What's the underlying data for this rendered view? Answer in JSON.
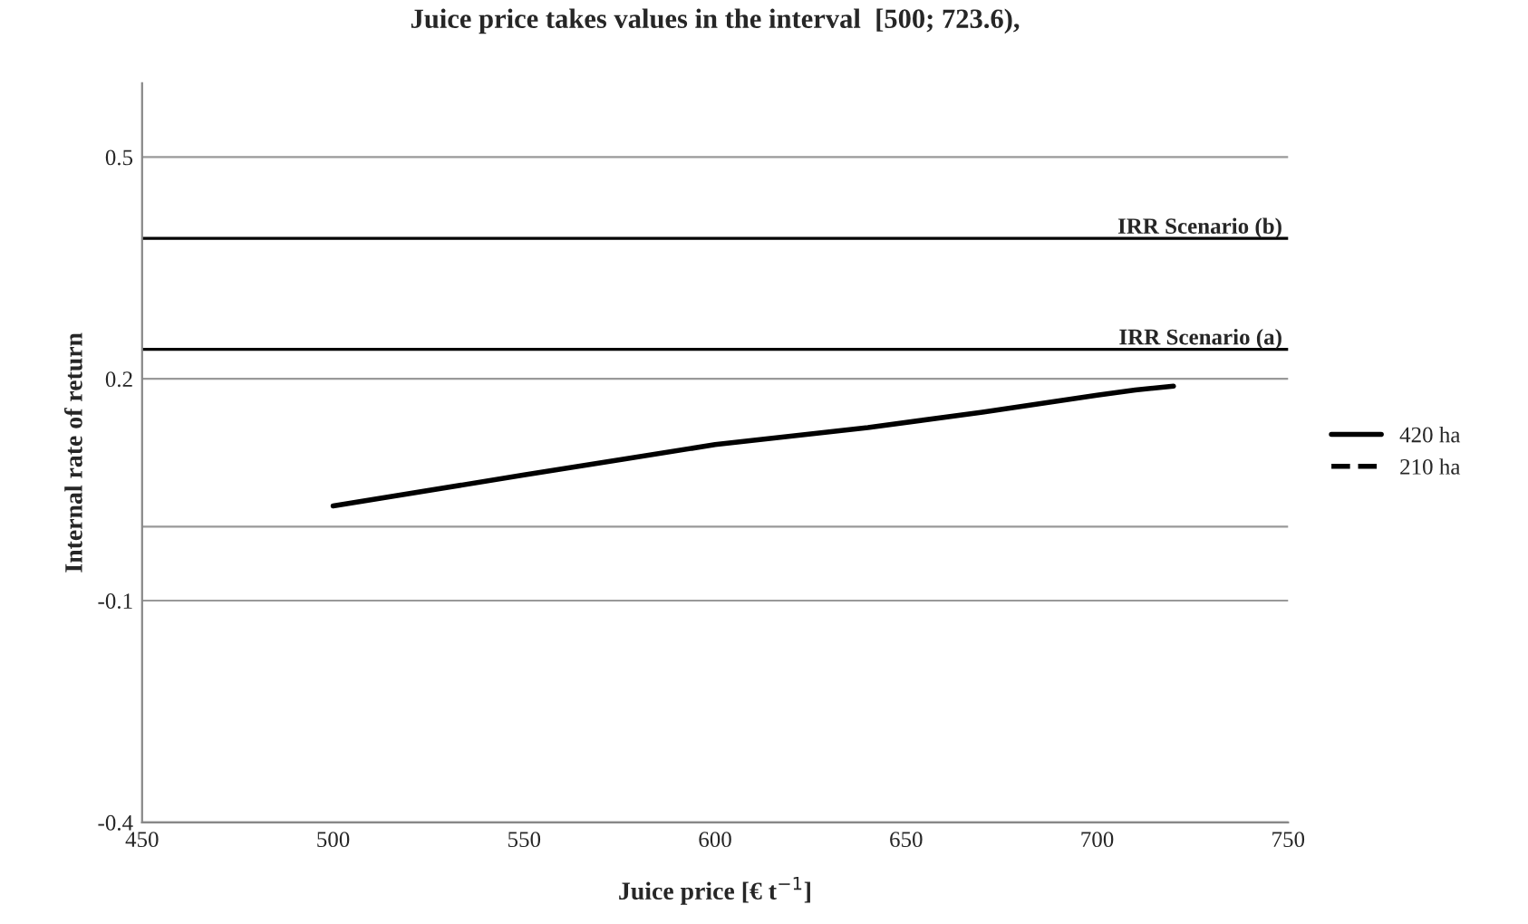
{
  "chart_data": {
    "type": "line",
    "title": "Juice price takes values in the interval  [500; 723.6),",
    "xlabel": "Juice price [€ t$^{−1}$]",
    "ylabel": "Internal rate of return",
    "xlim": [
      450,
      750
    ],
    "xticks": [
      450,
      500,
      550,
      600,
      650,
      700,
      750
    ],
    "ylim": [
      -0.4,
      0.6
    ],
    "yticks": [
      -0.4,
      -0.1,
      {
        "value": 0,
        "label": null
      },
      0.2,
      0.5
    ],
    "grid": "y",
    "legend": "right",
    "series": [
      {
        "name": "420 ha",
        "color": "#000000",
        "line_style": "solid",
        "x": [
          500,
          550,
          600,
          640,
          670,
          700,
          710,
          720
        ],
        "values": [
          0.028,
          0.07,
          0.111,
          0.134,
          0.155,
          0.178,
          0.185,
          0.19
        ]
      },
      {
        "name": "210 ha",
        "color": "#000000",
        "line_style": "dashed"
      }
    ],
    "ref_lines": [
      {
        "axis": "y",
        "value": 0.39,
        "label": "IRR Scenario (b)",
        "color": "#000000"
      },
      {
        "axis": "y",
        "value": 0.24,
        "label": "IRR Scenario (a)",
        "color": "#000000"
      }
    ]
  }
}
